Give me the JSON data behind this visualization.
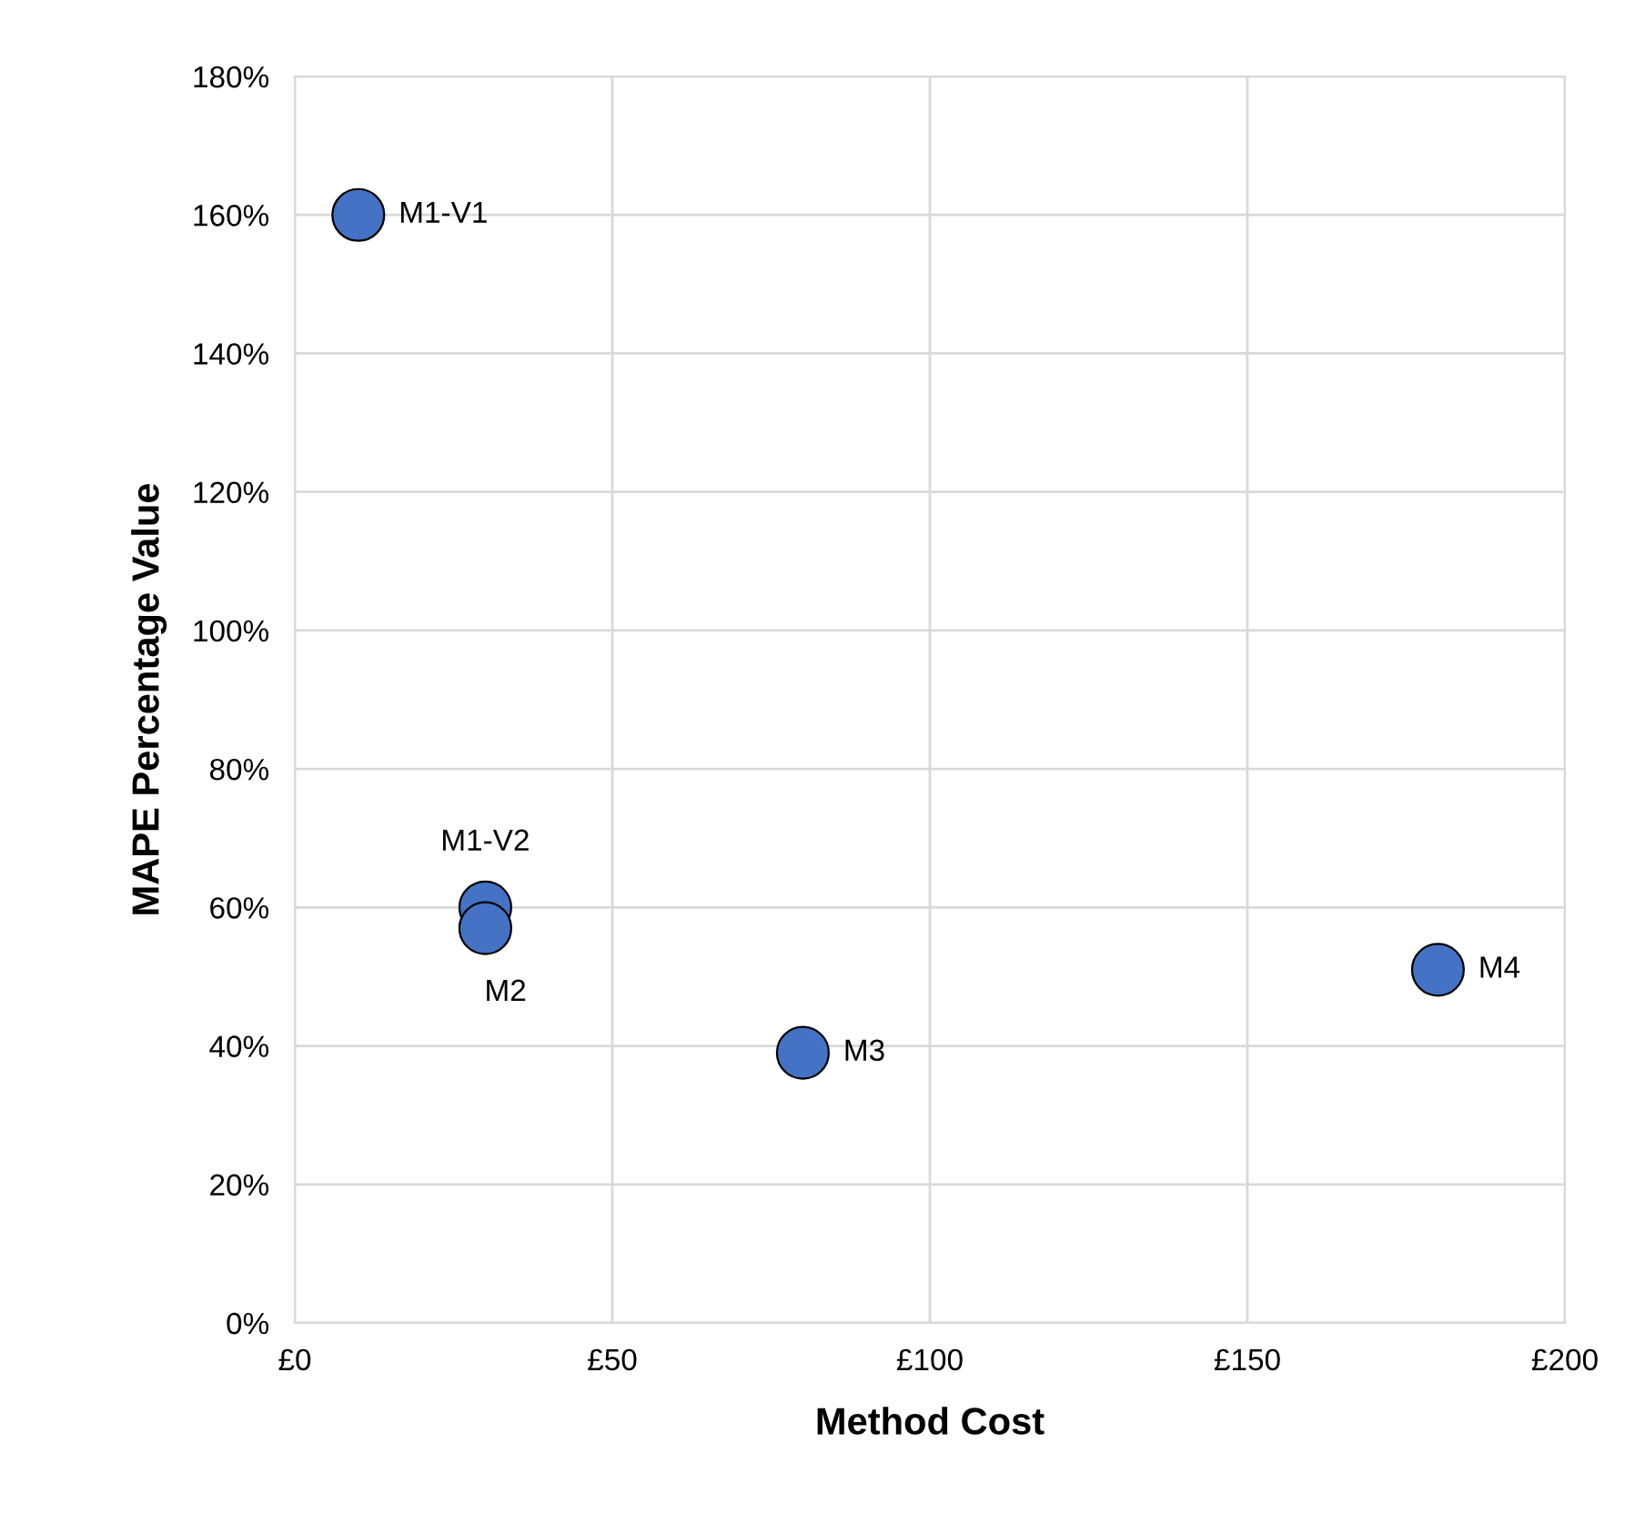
{
  "chart_data": {
    "type": "scatter",
    "xlabel": "Method Cost",
    "ylabel": "MAPE Percentage Value",
    "x": [
      10,
      30,
      30,
      80,
      180
    ],
    "series": [
      {
        "color": "#4472c4",
        "values": [
          160,
          60,
          57,
          39,
          51
        ]
      }
    ],
    "annotations": [
      {
        "text": "M1-V1",
        "x": 10,
        "y": 160
      },
      {
        "text": "M1-V2",
        "x": 30,
        "y": 60
      },
      {
        "text": "M2",
        "x": 30,
        "y": 57
      },
      {
        "text": "M3",
        "x": 80,
        "y": 39
      },
      {
        "text": "M4",
        "x": 180,
        "y": 51
      }
    ],
    "xlim": [
      0,
      200
    ],
    "ylim": [
      0,
      180
    ],
    "xticks": [
      {
        "value": 0,
        "label": "£0"
      },
      {
        "value": 50,
        "label": "£50"
      },
      {
        "value": 100,
        "label": "£100"
      },
      {
        "value": 150,
        "label": "£150"
      },
      {
        "value": 200,
        "label": "£200"
      }
    ],
    "yticks": [
      {
        "value": 0,
        "label": "0%"
      },
      {
        "value": 20,
        "label": "20%"
      },
      {
        "value": 40,
        "label": "40%"
      },
      {
        "value": 60,
        "label": "60%"
      },
      {
        "value": 80,
        "label": "80%"
      },
      {
        "value": 100,
        "label": "100%"
      },
      {
        "value": 120,
        "label": "120%"
      },
      {
        "value": 140,
        "label": "140%"
      },
      {
        "value": 160,
        "label": "160%"
      },
      {
        "value": 180,
        "label": "180%"
      }
    ],
    "grid": true,
    "marker": "circle",
    "legend": false
  }
}
